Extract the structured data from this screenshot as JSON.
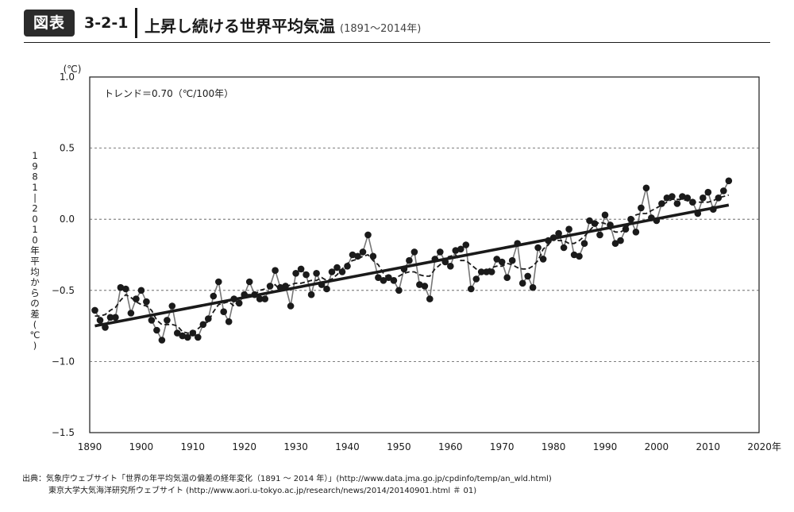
{
  "header": {
    "badge": "図表",
    "figure_number": "3-2-1",
    "title": "上昇し続ける世界平均気温",
    "subtitle": "(1891～2014年)"
  },
  "source": {
    "line1": "出典：気象庁ウェブサイト「世界の年平均気温の偏差の経年変化（1891 ～ 2014 年）」(http://www.data.jma.go.jp/cpdinfo/temp/an_wld.html)",
    "line2": "東京大学大気海洋研究所ウェブサイト (http://www.aori.u-tokyo.ac.jp/research/news/2014/20140901.html ＃ 01)"
  },
  "chart_data": {
    "type": "line",
    "annotation": "トレンド＝0.70（℃/100年）",
    "unit_label": "(℃)",
    "ylabel": "1981-2010年平均からの差(℃)",
    "x_unit_suffix": "年",
    "xlim": [
      1890,
      2020
    ],
    "ylim": [
      -1.5,
      1.0
    ],
    "x_ticks": [
      1890,
      1900,
      1910,
      1920,
      1930,
      1940,
      1950,
      1960,
      1970,
      1980,
      1990,
      2000,
      2010,
      2020
    ],
    "y_ticks": [
      1.0,
      0.5,
      0.0,
      -0.5,
      -1.0,
      -1.5
    ],
    "y_tick_labels": [
      "1.0",
      "0.5",
      "0.0",
      "−0.5",
      "−1.0",
      "−1.5"
    ],
    "grid": "horizontal dashed at 0.5, 0.0, -0.5, -1.0",
    "series": [
      {
        "style": "points-and-thin-line",
        "x_start": 1891,
        "values": [
          -0.64,
          -0.71,
          -0.76,
          -0.69,
          -0.69,
          -0.48,
          -0.49,
          -0.66,
          -0.56,
          -0.5,
          -0.58,
          -0.71,
          -0.78,
          -0.85,
          -0.71,
          -0.61,
          -0.8,
          -0.82,
          -0.83,
          -0.8,
          -0.83,
          -0.74,
          -0.7,
          -0.54,
          -0.44,
          -0.65,
          -0.72,
          -0.56,
          -0.59,
          -0.53,
          -0.44,
          -0.53,
          -0.56,
          -0.56,
          -0.47,
          -0.36,
          -0.48,
          -0.47,
          -0.61,
          -0.38,
          -0.35,
          -0.39,
          -0.53,
          -0.38,
          -0.46,
          -0.49,
          -0.37,
          -0.34,
          -0.37,
          -0.33,
          -0.25,
          -0.26,
          -0.23,
          -0.11,
          -0.26,
          -0.41,
          -0.43,
          -0.41,
          -0.43,
          -0.5,
          -0.35,
          -0.29,
          -0.23,
          -0.46,
          -0.47,
          -0.56,
          -0.28,
          -0.23,
          -0.3,
          -0.33,
          -0.22,
          -0.21,
          -0.18,
          -0.49,
          -0.42,
          -0.37,
          -0.37,
          -0.37,
          -0.28,
          -0.3,
          -0.41,
          -0.29,
          -0.17,
          -0.45,
          -0.4,
          -0.48,
          -0.2,
          -0.28,
          -0.15,
          -0.13,
          -0.1,
          -0.2,
          -0.07,
          -0.25,
          -0.26,
          -0.17,
          -0.01,
          -0.03,
          -0.11,
          0.03,
          -0.04,
          -0.17,
          -0.15,
          -0.07,
          0.0,
          -0.09,
          0.08,
          0.22,
          0.01,
          -0.01,
          0.11,
          0.15,
          0.16,
          0.11,
          0.16,
          0.15,
          0.12,
          0.04,
          0.15,
          0.19,
          0.07,
          0.15,
          0.2,
          0.27
        ]
      },
      {
        "style": "dashed",
        "x_start": 1891,
        "values": [
          -0.68,
          -0.68,
          -0.67,
          -0.64,
          -0.62,
          -0.57,
          -0.53,
          -0.55,
          -0.58,
          -0.6,
          -0.61,
          -0.64,
          -0.71,
          -0.74,
          -0.74,
          -0.74,
          -0.75,
          -0.79,
          -0.8,
          -0.8,
          -0.77,
          -0.74,
          -0.72,
          -0.65,
          -0.6,
          -0.59,
          -0.58,
          -0.61,
          -0.57,
          -0.53,
          -0.53,
          -0.53,
          -0.5,
          -0.49,
          -0.48,
          -0.46,
          -0.5,
          -0.48,
          -0.46,
          -0.45,
          -0.45,
          -0.44,
          -0.43,
          -0.43,
          -0.41,
          -0.43,
          -0.42,
          -0.39,
          -0.35,
          -0.31,
          -0.29,
          -0.28,
          -0.26,
          -0.25,
          -0.29,
          -0.32,
          -0.38,
          -0.42,
          -0.42,
          -0.4,
          -0.38,
          -0.37,
          -0.37,
          -0.39,
          -0.4,
          -0.4,
          -0.35,
          -0.32,
          -0.27,
          -0.26,
          -0.25,
          -0.29,
          -0.29,
          -0.32,
          -0.35,
          -0.37,
          -0.36,
          -0.34,
          -0.33,
          -0.33,
          -0.31,
          -0.32,
          -0.34,
          -0.35,
          -0.35,
          -0.33,
          -0.29,
          -0.21,
          -0.18,
          -0.13,
          -0.15,
          -0.15,
          -0.17,
          -0.17,
          -0.15,
          -0.12,
          -0.08,
          -0.04,
          -0.02,
          -0.03,
          -0.07,
          -0.09,
          -0.09,
          -0.07,
          -0.02,
          0.03,
          0.04,
          0.04,
          0.06,
          0.08,
          0.1,
          0.12,
          0.14,
          0.14,
          0.14,
          0.13,
          0.12,
          0.12,
          0.12,
          0.12,
          0.13,
          0.15,
          0.16,
          0.17
        ]
      },
      {
        "style": "trend-line",
        "x": [
          1891,
          2014
        ],
        "values": [
          -0.75,
          0.1
        ]
      }
    ]
  },
  "colors": {
    "ink": "#1a1a1a",
    "thin_line": "#777777",
    "grid": "#555555"
  }
}
